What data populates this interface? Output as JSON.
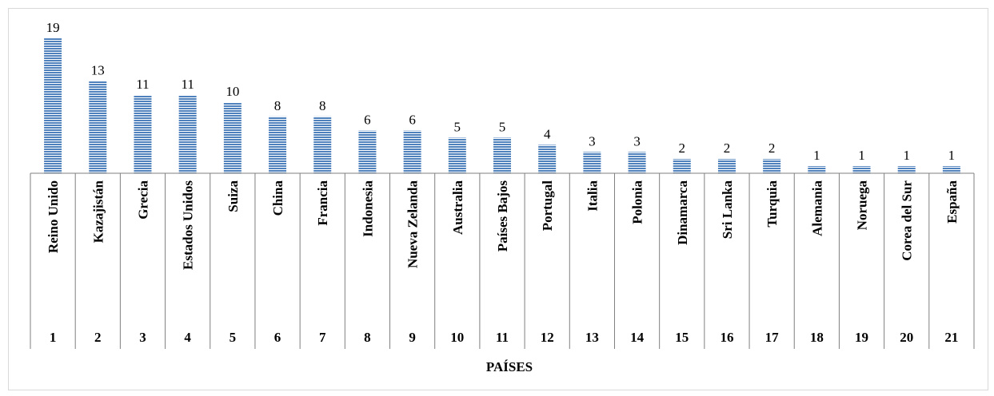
{
  "chart_data": {
    "type": "bar",
    "xlabel": "PAÍSES",
    "ylabel": "",
    "categories": [
      "Reino Unido",
      "Kazajistán",
      "Grecia",
      "Estados Unidos",
      "Suiza",
      "China",
      "Francia",
      "Indonesia",
      "Nueva Zelanda",
      "Australia",
      "Países Bajos",
      "Portugal",
      "Italia",
      "Polonia",
      "Dinamarca",
      "Sri Lanka",
      "Turquia",
      "Alemania",
      "Noruega",
      "Corea del Sur",
      "España"
    ],
    "ranks": [
      "1",
      "2",
      "3",
      "4",
      "5",
      "6",
      "7",
      "8",
      "9",
      "10",
      "11",
      "12",
      "13",
      "14",
      "15",
      "16",
      "17",
      "18",
      "19",
      "20",
      "21"
    ],
    "values": [
      19,
      13,
      11,
      11,
      10,
      8,
      8,
      6,
      6,
      5,
      5,
      4,
      3,
      3,
      2,
      2,
      2,
      1,
      1,
      1,
      1
    ],
    "ylim": [
      0,
      19
    ],
    "grid": false,
    "legend": "none",
    "bar_color": "#4f81bd",
    "bar_pattern": "horizontal-stripes"
  }
}
